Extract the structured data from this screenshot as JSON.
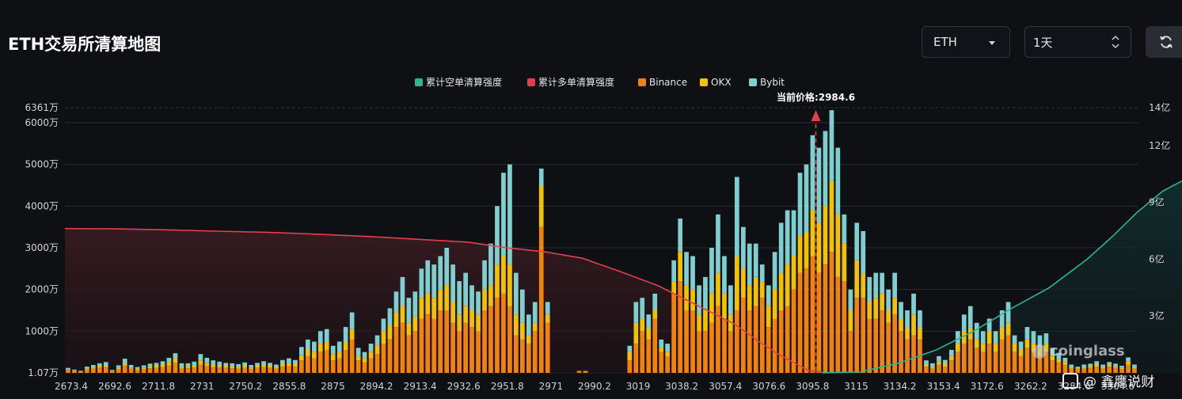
{
  "header": {
    "title": "ETH交易所清算地图",
    "asset_select": "ETH",
    "range_select": "1天"
  },
  "colors": {
    "short_cum": "#2bb68f",
    "long_cum": "#e0404b",
    "binance": "#f0820f",
    "okx": "#f2c200",
    "bybit": "#7fcfd1"
  },
  "icons": [
    "chevron-down-icon",
    "up-down-arrows-icon",
    "refresh-icon",
    "coinglass-logo-icon",
    "binance-square-icon"
  ],
  "watermarks": {
    "brand": "coinglass",
    "author": "@ 鑫鹰说财"
  },
  "chart_data": {
    "type": "bar",
    "title": "",
    "legend": [
      "累计空单清算强度",
      "累计多单清算强度",
      "Binance",
      "OKX",
      "Bybit"
    ],
    "legend_position": "top-center",
    "current_price_label": "当前价格:2984.6",
    "current_price": 2984.6,
    "x_tick_labels": [
      "2673.4",
      "2692.6",
      "2711.8",
      "2731",
      "2750.2",
      "2855.8",
      "2875",
      "2894.2",
      "2913.4",
      "2932.6",
      "2951.8",
      "2971",
      "2990.2",
      "3019",
      "3038.2",
      "3057.4",
      "3076.6",
      "3095.8",
      "3115",
      "3134.2",
      "3153.4",
      "3172.6",
      "3262.2",
      "3284.6",
      "3304.6"
    ],
    "y_left_ticks": [
      "1.07万",
      "1000万",
      "2000万",
      "3000万",
      "4000万",
      "5000万",
      "6000万",
      "6361万"
    ],
    "y_left_tick_values": [
      1.07,
      1000,
      2000,
      3000,
      4000,
      5000,
      6000,
      6361
    ],
    "y_left_range": [
      0,
      6361
    ],
    "y_left_unit": "万",
    "y_right_ticks": [
      "3亿",
      "6亿",
      "9亿",
      "12亿",
      "14亿"
    ],
    "y_right_tick_values": [
      3,
      6,
      9,
      12,
      14
    ],
    "y_right_range": [
      0,
      14
    ],
    "y_right_unit": "亿",
    "grid": true,
    "bar_segments": [
      "Binance",
      "OKX",
      "Bybit"
    ],
    "bars": [
      [
        80,
        0,
        40
      ],
      [
        60,
        0,
        20
      ],
      [
        30,
        0,
        20
      ],
      [
        80,
        30,
        40
      ],
      [
        100,
        40,
        50
      ],
      [
        120,
        50,
        60
      ],
      [
        130,
        50,
        80
      ],
      [
        40,
        10,
        20
      ],
      [
        80,
        40,
        60
      ],
      [
        180,
        60,
        100
      ],
      [
        100,
        30,
        60
      ],
      [
        70,
        30,
        40
      ],
      [
        90,
        40,
        50
      ],
      [
        110,
        50,
        60
      ],
      [
        120,
        60,
        60
      ],
      [
        140,
        60,
        80
      ],
      [
        180,
        80,
        100
      ],
      [
        250,
        100,
        120
      ],
      [
        100,
        50,
        80
      ],
      [
        110,
        50,
        70
      ],
      [
        130,
        60,
        80
      ],
      [
        200,
        100,
        150
      ],
      [
        160,
        80,
        120
      ],
      [
        140,
        60,
        100
      ],
      [
        130,
        60,
        80
      ],
      [
        120,
        50,
        70
      ],
      [
        110,
        50,
        70
      ],
      [
        100,
        50,
        60
      ],
      [
        120,
        50,
        80
      ],
      [
        90,
        40,
        60
      ],
      [
        120,
        50,
        70
      ],
      [
        140,
        60,
        80
      ],
      [
        120,
        50,
        70
      ],
      [
        100,
        40,
        60
      ],
      [
        150,
        60,
        100
      ],
      [
        160,
        70,
        120
      ],
      [
        150,
        60,
        100
      ],
      [
        300,
        120,
        200
      ],
      [
        400,
        150,
        250
      ],
      [
        350,
        150,
        250
      ],
      [
        500,
        200,
        300
      ],
      [
        550,
        200,
        300
      ],
      [
        300,
        150,
        200
      ],
      [
        350,
        150,
        250
      ],
      [
        550,
        200,
        350
      ],
      [
        800,
        250,
        400
      ],
      [
        300,
        100,
        200
      ],
      [
        250,
        100,
        150
      ],
      [
        350,
        150,
        200
      ],
      [
        450,
        200,
        250
      ],
      [
        700,
        300,
        300
      ],
      [
        800,
        350,
        400
      ],
      [
        1100,
        350,
        500
      ],
      [
        1200,
        400,
        700
      ],
      [
        900,
        300,
        600
      ],
      [
        1000,
        350,
        600
      ],
      [
        1300,
        500,
        700
      ],
      [
        1400,
        500,
        800
      ],
      [
        1300,
        500,
        800
      ],
      [
        1500,
        500,
        800
      ],
      [
        1500,
        600,
        900
      ],
      [
        1200,
        500,
        900
      ],
      [
        1000,
        400,
        800
      ],
      [
        1200,
        400,
        800
      ],
      [
        1100,
        400,
        600
      ],
      [
        1000,
        400,
        550
      ],
      [
        1500,
        500,
        700
      ],
      [
        1600,
        500,
        1000
      ],
      [
        1800,
        800,
        1400
      ],
      [
        1900,
        900,
        2000
      ],
      [
        1600,
        1000,
        2400
      ],
      [
        900,
        500,
        1000
      ],
      [
        800,
        400,
        800
      ],
      [
        700,
        200,
        500
      ],
      [
        1000,
        200,
        500
      ],
      [
        3500,
        1000,
        400
      ],
      [
        1200,
        200,
        300
      ],
      [
        0,
        0,
        0
      ],
      [
        0,
        0,
        0
      ],
      [
        0,
        0,
        0
      ],
      [
        0,
        0,
        0
      ],
      [
        50,
        0,
        0
      ],
      [
        50,
        0,
        0
      ],
      [
        0,
        0,
        0
      ],
      [
        0,
        0,
        0
      ],
      [
        0,
        0,
        0
      ],
      [
        0,
        0,
        0
      ],
      [
        0,
        0,
        0
      ],
      [
        0,
        0,
        0
      ],
      [
        300,
        200,
        150
      ],
      [
        700,
        500,
        500
      ],
      [
        1000,
        300,
        500
      ],
      [
        800,
        300,
        300
      ],
      [
        1300,
        200,
        400
      ],
      [
        500,
        100,
        200
      ],
      [
        400,
        100,
        200
      ],
      [
        1900,
        300,
        500
      ],
      [
        2200,
        700,
        800
      ],
      [
        1500,
        600,
        800
      ],
      [
        1500,
        500,
        800
      ],
      [
        1000,
        400,
        700
      ],
      [
        1000,
        500,
        800
      ],
      [
        1200,
        700,
        1100
      ],
      [
        1600,
        800,
        1400
      ],
      [
        1300,
        600,
        900
      ],
      [
        1000,
        400,
        700
      ],
      [
        1500,
        1300,
        1900
      ],
      [
        1800,
        700,
        1000
      ],
      [
        1500,
        600,
        1000
      ],
      [
        1600,
        700,
        800
      ],
      [
        1800,
        400,
        400
      ],
      [
        1100,
        500,
        500
      ],
      [
        1300,
        700,
        900
      ],
      [
        1500,
        900,
        1200
      ],
      [
        1600,
        1000,
        1300
      ],
      [
        2000,
        800,
        1100
      ],
      [
        2400,
        900,
        1500
      ],
      [
        2500,
        900,
        1600
      ],
      [
        2800,
        1100,
        1800
      ],
      [
        2400,
        1200,
        1800
      ],
      [
        2600,
        1400,
        1800
      ],
      [
        2900,
        1700,
        1700
      ],
      [
        2300,
        1500,
        1600
      ],
      [
        2200,
        900,
        700
      ],
      [
        1000,
        500,
        500
      ],
      [
        1800,
        900,
        900
      ],
      [
        1800,
        600,
        1000
      ],
      [
        1300,
        400,
        600
      ],
      [
        1300,
        500,
        600
      ],
      [
        1500,
        400,
        500
      ],
      [
        1200,
        300,
        500
      ],
      [
        1400,
        400,
        600
      ],
      [
        1000,
        300,
        400
      ],
      [
        800,
        300,
        400
      ],
      [
        900,
        500,
        500
      ],
      [
        800,
        300,
        400
      ],
      [
        150,
        50,
        100
      ],
      [
        100,
        50,
        80
      ],
      [
        200,
        80,
        120
      ],
      [
        150,
        60,
        100
      ],
      [
        300,
        100,
        150
      ],
      [
        500,
        200,
        300
      ],
      [
        700,
        300,
        400
      ],
      [
        800,
        300,
        500
      ],
      [
        600,
        200,
        400
      ],
      [
        500,
        200,
        300
      ],
      [
        700,
        300,
        300
      ],
      [
        500,
        200,
        300
      ],
      [
        800,
        300,
        400
      ],
      [
        900,
        300,
        500
      ],
      [
        500,
        200,
        200
      ],
      [
        400,
        150,
        200
      ],
      [
        600,
        200,
        300
      ],
      [
        500,
        200,
        300
      ],
      [
        400,
        200,
        300
      ],
      [
        500,
        200,
        250
      ],
      [
        300,
        100,
        200
      ],
      [
        250,
        80,
        150
      ],
      [
        200,
        60,
        100
      ],
      [
        100,
        40,
        60
      ],
      [
        80,
        30,
        40
      ],
      [
        100,
        40,
        60
      ],
      [
        120,
        40,
        60
      ],
      [
        150,
        50,
        80
      ],
      [
        100,
        40,
        60
      ],
      [
        150,
        50,
        60
      ],
      [
        120,
        40,
        60
      ],
      [
        90,
        30,
        50
      ],
      [
        200,
        70,
        100
      ],
      [
        100,
        40,
        60
      ]
    ],
    "long_cum_line": [
      [
        0,
        7.62
      ],
      [
        8,
        7.6
      ],
      [
        16,
        7.55
      ],
      [
        24,
        7.48
      ],
      [
        32,
        7.42
      ],
      [
        40,
        7.32
      ],
      [
        48,
        7.2
      ],
      [
        56,
        7.05
      ],
      [
        64,
        6.9
      ],
      [
        70,
        6.6
      ],
      [
        76,
        6.4
      ],
      [
        82,
        6.05
      ],
      [
        88,
        5.35
      ],
      [
        94,
        4.6
      ],
      [
        100,
        3.6
      ],
      [
        106,
        2.6
      ],
      [
        110,
        1.65
      ],
      [
        113,
        1.0
      ],
      [
        116,
        0.45
      ],
      [
        118,
        0.1
      ],
      [
        120,
        0.05
      ]
    ],
    "short_cum_line": [
      [
        120,
        0.0
      ],
      [
        126,
        0.05
      ],
      [
        132,
        0.5
      ],
      [
        138,
        1.2
      ],
      [
        144,
        2.2
      ],
      [
        150,
        3.4
      ],
      [
        156,
        4.5
      ],
      [
        162,
        6.0
      ],
      [
        166,
        7.2
      ],
      [
        170,
        8.5
      ],
      [
        174,
        9.6
      ],
      [
        178,
        10.3
      ],
      [
        182,
        10.8
      ],
      [
        188,
        11.1
      ],
      [
        194,
        11.2
      ],
      [
        200,
        11.6
      ],
      [
        206,
        12.0
      ],
      [
        212,
        12.3
      ],
      [
        218,
        12.5
      ],
      [
        224,
        12.6
      ],
      [
        230,
        12.7
      ],
      [
        236,
        12.8
      ],
      [
        240,
        12.8
      ]
    ]
  }
}
